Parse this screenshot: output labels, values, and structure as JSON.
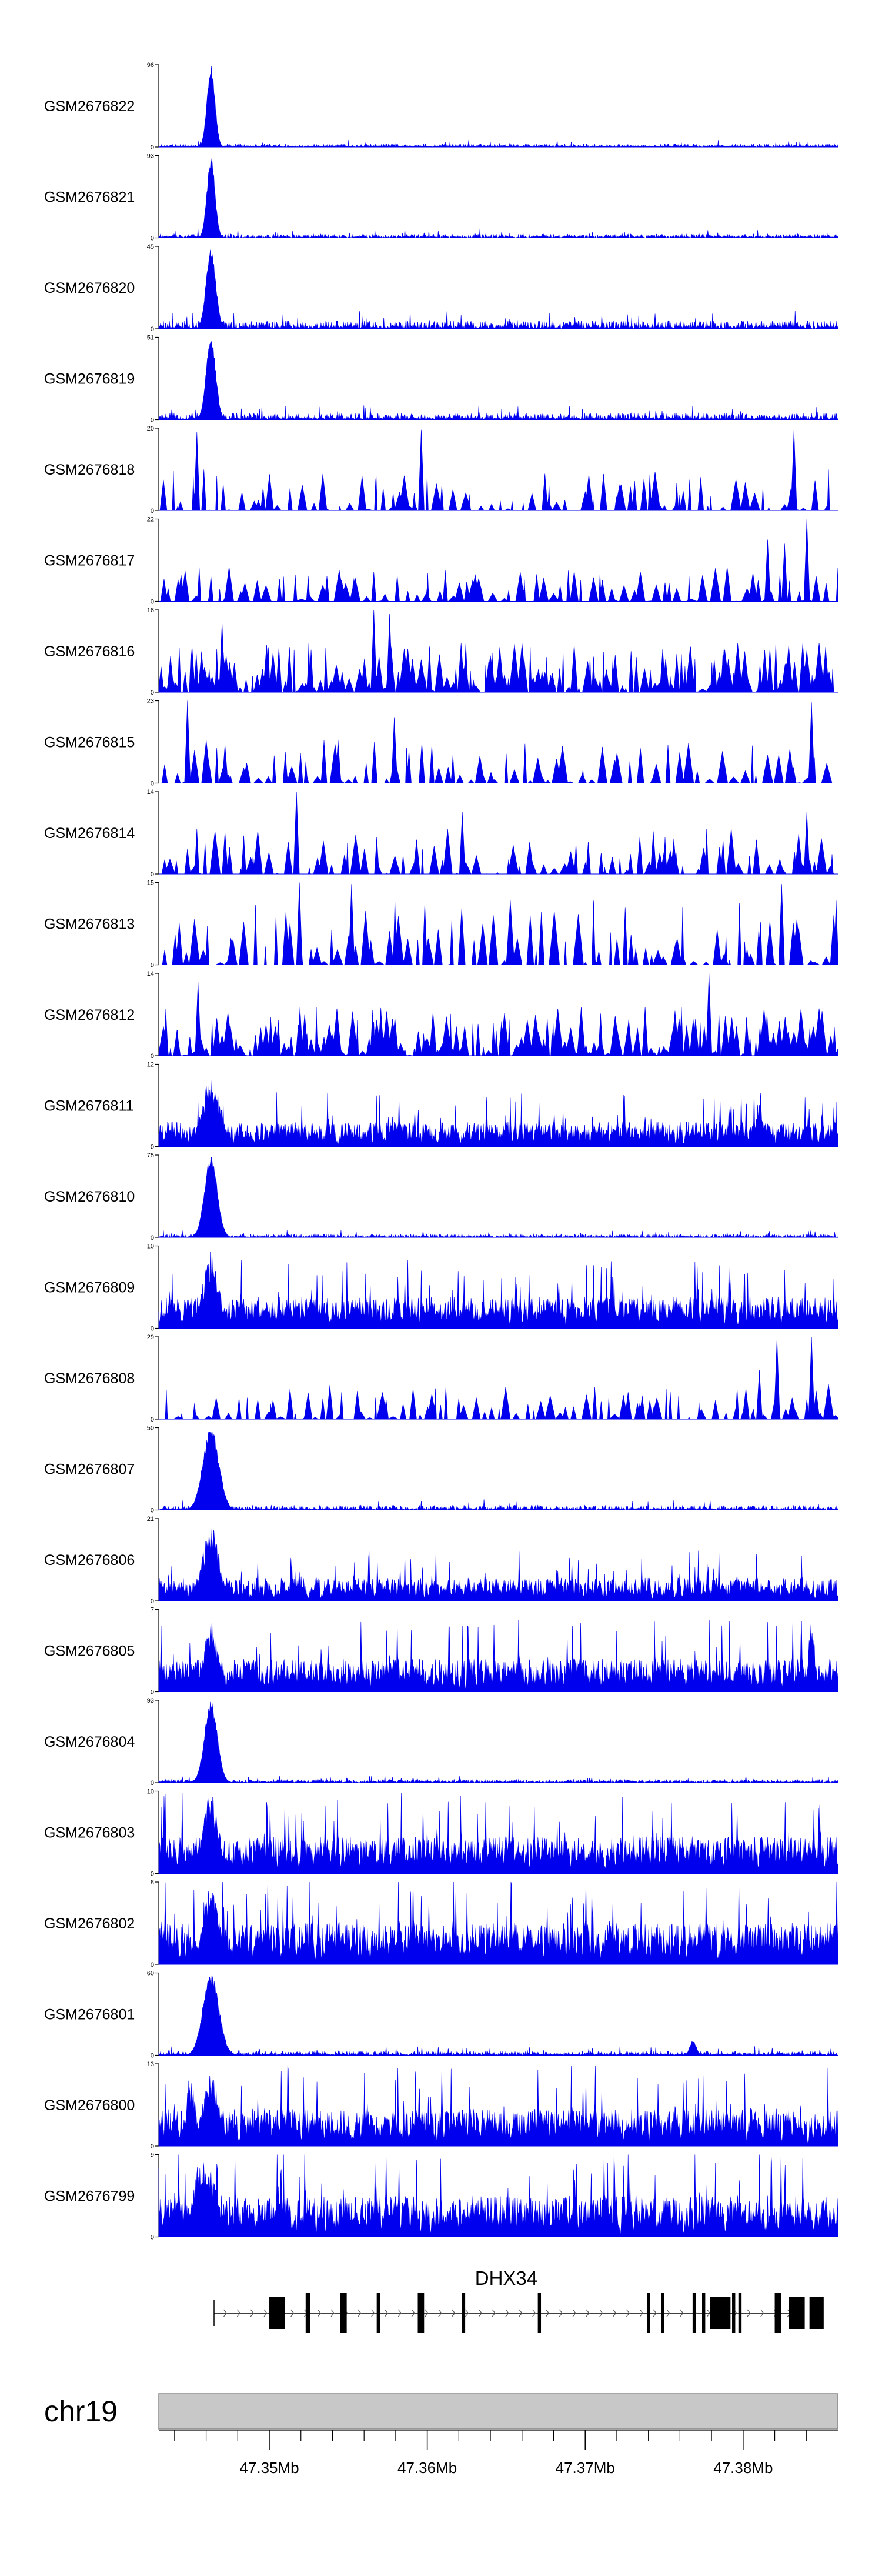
{
  "colors": {
    "signal": "#0000ee",
    "axis": "#000000",
    "ideogram": "#c8c8c8",
    "gene": "#000000"
  },
  "chart_data": {
    "type": "area",
    "title": "",
    "chromosome": "chr19",
    "xlim": [
      47.343,
      47.386
    ],
    "xunit": "Mb",
    "gene": {
      "name": "DHX34",
      "strand": "+",
      "start": 47.3465,
      "end": 47.3838,
      "exons": [
        [
          47.35,
          47.351
        ],
        [
          47.3523,
          47.3526
        ],
        [
          47.3545,
          47.3549
        ],
        [
          47.3568,
          47.357
        ],
        [
          47.3594,
          47.3598
        ],
        [
          47.3622,
          47.3624
        ],
        [
          47.367,
          47.3672
        ],
        [
          47.3739,
          47.3741
        ],
        [
          47.3748,
          47.375
        ],
        [
          47.3768,
          47.377
        ],
        [
          47.3774,
          47.3776
        ],
        [
          47.3779,
          47.3792
        ],
        [
          47.3793,
          47.3795
        ],
        [
          47.3797,
          47.3799
        ],
        [
          47.382,
          47.3824
        ],
        [
          47.3829,
          47.3839
        ],
        [
          47.3842,
          47.3851
        ]
      ]
    },
    "axis_ticks": [
      47.35,
      47.36,
      47.37,
      47.38
    ],
    "axis_tick_labels": [
      "47.35Mb",
      "47.36Mb",
      "47.37Mb",
      "47.38Mb"
    ],
    "axis_minor_ticks": [
      47.344,
      47.346,
      47.348,
      47.352,
      47.354,
      47.356,
      47.358,
      47.362,
      47.364,
      47.366,
      47.368,
      47.372,
      47.374,
      47.376,
      47.378,
      47.382,
      47.384
    ],
    "tracks": [
      {
        "name": "GSM2676822",
        "ymax": 96,
        "ymin": 0,
        "mode": "sharp",
        "peaks": [
          {
            "x": 47.3463,
            "h": 1.0,
            "w": 0.00025
          }
        ],
        "background": 0.04,
        "density": 0.9,
        "seed": 1
      },
      {
        "name": "GSM2676821",
        "ymax": 93,
        "ymin": 0,
        "mode": "sharp",
        "peaks": [
          {
            "x": 47.3463,
            "h": 1.0,
            "w": 0.00025
          }
        ],
        "background": 0.05,
        "density": 0.9,
        "seed": 2
      },
      {
        "name": "GSM2676820",
        "ymax": 45,
        "ymin": 0,
        "mode": "sharp",
        "peaks": [
          {
            "x": 47.3463,
            "h": 1.0,
            "w": 0.0003
          }
        ],
        "background": 0.1,
        "density": 0.9,
        "seed": 3
      },
      {
        "name": "GSM2676819",
        "ymax": 51,
        "ymin": 0,
        "mode": "sharp",
        "peaks": [
          {
            "x": 47.3463,
            "h": 1.0,
            "w": 0.0003
          }
        ],
        "background": 0.08,
        "density": 0.9,
        "seed": 4
      },
      {
        "name": "GSM2676818",
        "ymax": 20,
        "ymin": 0,
        "mode": "sparse",
        "peaks": [
          {
            "x": 47.3454,
            "h": 0.95
          },
          {
            "x": 47.3596,
            "h": 0.98
          },
          {
            "x": 47.3832,
            "h": 0.98
          }
        ],
        "background": 0.25,
        "density": 0.35,
        "seed": 5
      },
      {
        "name": "GSM2676817",
        "ymax": 22,
        "ymin": 0,
        "mode": "sparse",
        "peaks": [
          {
            "x": 47.384,
            "h": 1.0
          },
          {
            "x": 47.3815,
            "h": 0.75
          },
          {
            "x": 47.3826,
            "h": 0.7
          }
        ],
        "background": 0.18,
        "density": 0.4,
        "seed": 6
      },
      {
        "name": "GSM2676816",
        "ymax": 16,
        "ymin": 0,
        "mode": "sparse",
        "peaks": [
          {
            "x": 47.3566,
            "h": 1.0
          },
          {
            "x": 47.3576,
            "h": 0.95
          },
          {
            "x": 47.347,
            "h": 0.85
          }
        ],
        "background": 0.35,
        "density": 0.5,
        "seed": 7
      },
      {
        "name": "GSM2676815",
        "ymax": 23,
        "ymin": 0,
        "mode": "sparse",
        "peaks": [
          {
            "x": 47.3448,
            "h": 1.0
          },
          {
            "x": 47.3579,
            "h": 0.8
          },
          {
            "x": 47.3843,
            "h": 0.98
          }
        ],
        "background": 0.3,
        "density": 0.3,
        "seed": 8
      },
      {
        "name": "GSM2676814",
        "ymax": 14,
        "ymin": 0,
        "mode": "sparse",
        "peaks": [
          {
            "x": 47.3517,
            "h": 1.0
          },
          {
            "x": 47.3622,
            "h": 0.75
          },
          {
            "x": 47.384,
            "h": 0.75
          }
        ],
        "background": 0.3,
        "density": 0.4,
        "seed": 9
      },
      {
        "name": "GSM2676813",
        "ymax": 15,
        "ymin": 0,
        "mode": "sparse",
        "peaks": [
          {
            "x": 47.3519,
            "h": 1.0
          },
          {
            "x": 47.3552,
            "h": 0.98
          },
          {
            "x": 47.3824,
            "h": 0.98
          }
        ],
        "background": 0.55,
        "density": 0.4,
        "seed": 10
      },
      {
        "name": "GSM2676812",
        "ymax": 14,
        "ymin": 0,
        "mode": "sparse",
        "peaks": [
          {
            "x": 47.3778,
            "h": 1.0
          },
          {
            "x": 47.3455,
            "h": 0.9
          }
        ],
        "background": 0.35,
        "density": 0.6,
        "seed": 11
      },
      {
        "name": "GSM2676811",
        "ymax": 12,
        "ymin": 0,
        "mode": "dense",
        "peaks": [
          {
            "x": 47.3463,
            "h": 0.85,
            "w": 0.0006
          },
          {
            "x": 47.381,
            "h": 0.55,
            "w": 0.0003
          }
        ],
        "background": 0.3,
        "density": 0.8,
        "seed": 12
      },
      {
        "name": "GSM2676810",
        "ymax": 75,
        "ymin": 0,
        "mode": "sharp",
        "peaks": [
          {
            "x": 47.3463,
            "h": 1.0,
            "w": 0.0004
          }
        ],
        "background": 0.04,
        "density": 0.9,
        "seed": 13
      },
      {
        "name": "GSM2676809",
        "ymax": 10,
        "ymin": 0,
        "mode": "dense",
        "peaks": [
          {
            "x": 47.3463,
            "h": 0.95,
            "w": 0.0005
          }
        ],
        "background": 0.38,
        "density": 0.8,
        "seed": 14
      },
      {
        "name": "GSM2676808",
        "ymax": 29,
        "ymin": 0,
        "mode": "sparse",
        "peaks": [
          {
            "x": 47.3843,
            "h": 1.0
          },
          {
            "x": 47.3821,
            "h": 0.98
          },
          {
            "x": 47.381,
            "h": 0.6
          }
        ],
        "background": 0.18,
        "density": 0.4,
        "seed": 15
      },
      {
        "name": "GSM2676807",
        "ymax": 50,
        "ymin": 0,
        "mode": "sharp",
        "peaks": [
          {
            "x": 47.3463,
            "h": 1.0,
            "w": 0.0005
          }
        ],
        "background": 0.06,
        "density": 0.9,
        "seed": 16
      },
      {
        "name": "GSM2676806",
        "ymax": 21,
        "ymin": 0,
        "mode": "dense",
        "peaks": [
          {
            "x": 47.3463,
            "h": 0.98,
            "w": 0.0005
          }
        ],
        "background": 0.28,
        "density": 0.8,
        "seed": 17
      },
      {
        "name": "GSM2676805",
        "ymax": 7,
        "ymin": 0,
        "mode": "dense",
        "peaks": [
          {
            "x": 47.3463,
            "h": 0.95,
            "w": 0.0004
          },
          {
            "x": 47.3843,
            "h": 0.85,
            "w": 0.0002
          }
        ],
        "background": 0.4,
        "density": 0.8,
        "seed": 18
      },
      {
        "name": "GSM2676804",
        "ymax": 93,
        "ymin": 0,
        "mode": "sharp",
        "peaks": [
          {
            "x": 47.3463,
            "h": 1.0,
            "w": 0.0004
          }
        ],
        "background": 0.04,
        "density": 0.9,
        "seed": 19
      },
      {
        "name": "GSM2676803",
        "ymax": 10,
        "ymin": 0,
        "mode": "dense",
        "peaks": [
          {
            "x": 47.3463,
            "h": 0.98,
            "w": 0.0005
          }
        ],
        "background": 0.45,
        "density": 0.85,
        "seed": 20
      },
      {
        "name": "GSM2676802",
        "ymax": 8,
        "ymin": 0,
        "mode": "dense",
        "peaks": [
          {
            "x": 47.3463,
            "h": 0.95,
            "w": 0.0005
          }
        ],
        "background": 0.5,
        "density": 0.85,
        "seed": 21
      },
      {
        "name": "GSM2676801",
        "ymax": 60,
        "ymin": 0,
        "mode": "sharp",
        "peaks": [
          {
            "x": 47.3463,
            "h": 1.0,
            "w": 0.0005
          },
          {
            "x": 47.3768,
            "h": 0.18,
            "w": 0.0002
          }
        ],
        "background": 0.05,
        "density": 0.9,
        "seed": 22
      },
      {
        "name": "GSM2676800",
        "ymax": 13,
        "ymin": 0,
        "mode": "dense",
        "peaks": [
          {
            "x": 47.3463,
            "h": 0.9,
            "w": 0.0005
          },
          {
            "x": 47.345,
            "h": 0.85,
            "w": 0.0003
          }
        ],
        "background": 0.45,
        "density": 0.85,
        "seed": 23
      },
      {
        "name": "GSM2676799",
        "ymax": 9,
        "ymin": 0,
        "mode": "dense",
        "peaks": [
          {
            "x": 47.3457,
            "h": 0.95,
            "w": 0.0005
          },
          {
            "x": 47.3463,
            "h": 0.9,
            "w": 0.0004
          }
        ],
        "background": 0.5,
        "density": 0.85,
        "seed": 24
      }
    ]
  }
}
